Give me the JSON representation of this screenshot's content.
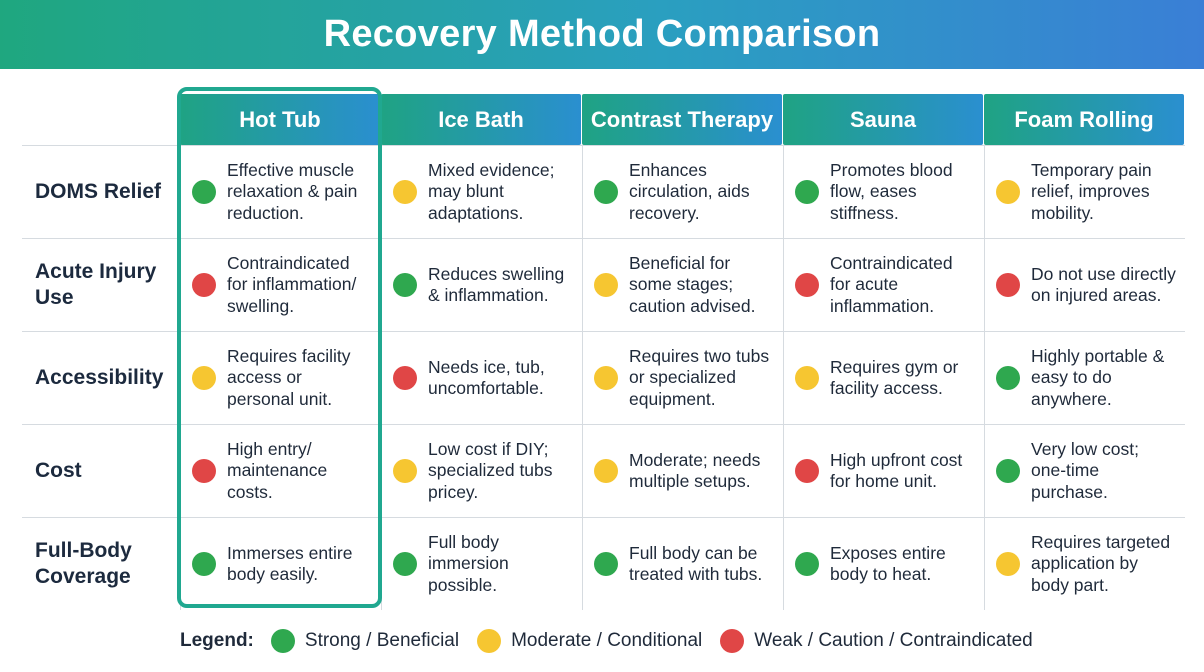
{
  "title": "Recovery Method Comparison",
  "columns": [
    "Hot Tub",
    "Ice Bath",
    "Contrast Therapy",
    "Sauna",
    "Foam Rolling"
  ],
  "rows": [
    {
      "label": "DOMS Relief",
      "cells": [
        {
          "rating": "green",
          "text": "Effective muscle relaxation & pain reduction."
        },
        {
          "rating": "yellow",
          "text": "Mixed evidence; may blunt adaptations."
        },
        {
          "rating": "green",
          "text": "Enhances circulation, aids recovery."
        },
        {
          "rating": "green",
          "text": "Promotes blood flow, eases stiffness."
        },
        {
          "rating": "yellow",
          "text": "Temporary pain relief, improves mobility."
        }
      ]
    },
    {
      "label": "Acute Injury Use",
      "cells": [
        {
          "rating": "red",
          "text": "Contraindicated for inflammation/ swelling."
        },
        {
          "rating": "green",
          "text": "Reduces swelling & inflammation."
        },
        {
          "rating": "yellow",
          "text": "Beneficial for some stages; caution advised."
        },
        {
          "rating": "red",
          "text": "Contraindicated for acute inflammation."
        },
        {
          "rating": "red",
          "text": "Do not use directly on injured areas."
        }
      ]
    },
    {
      "label": "Accessibility",
      "cells": [
        {
          "rating": "yellow",
          "text": "Requires facility access or personal unit."
        },
        {
          "rating": "red",
          "text": "Needs ice, tub, uncomfortable."
        },
        {
          "rating": "yellow",
          "text": "Requires two tubs or specialized equipment."
        },
        {
          "rating": "yellow",
          "text": "Requires gym or facility access."
        },
        {
          "rating": "green",
          "text": "Highly portable & easy to do anywhere."
        }
      ]
    },
    {
      "label": "Cost",
      "cells": [
        {
          "rating": "red",
          "text": "High entry/ maintenance costs."
        },
        {
          "rating": "yellow",
          "text": "Low cost if DIY; specialized tubs pricey."
        },
        {
          "rating": "yellow",
          "text": "Moderate; needs multiple setups."
        },
        {
          "rating": "red",
          "text": "High upfront cost for home unit."
        },
        {
          "rating": "green",
          "text": "Very low cost; one-time purchase."
        }
      ]
    },
    {
      "label": "Full-Body Coverage",
      "cells": [
        {
          "rating": "green",
          "text": "Immerses entire body easily."
        },
        {
          "rating": "green",
          "text": "Full body immersion possible."
        },
        {
          "rating": "green",
          "text": "Full body can be treated with tubs."
        },
        {
          "rating": "green",
          "text": "Exposes entire body to heat."
        },
        {
          "rating": "yellow",
          "text": "Requires targeted application by body part."
        }
      ]
    }
  ],
  "legend": {
    "title": "Legend:",
    "items": [
      {
        "rating": "green",
        "label": "Strong / Beneficial"
      },
      {
        "rating": "yellow",
        "label": "Moderate / Conditional"
      },
      {
        "rating": "red",
        "label": "Weak / Caution / Contraindicated"
      }
    ]
  },
  "colors": {
    "green": "#2fa84f",
    "yellow": "#f6c631",
    "red": "#e04646",
    "highlight": "#20a890"
  }
}
